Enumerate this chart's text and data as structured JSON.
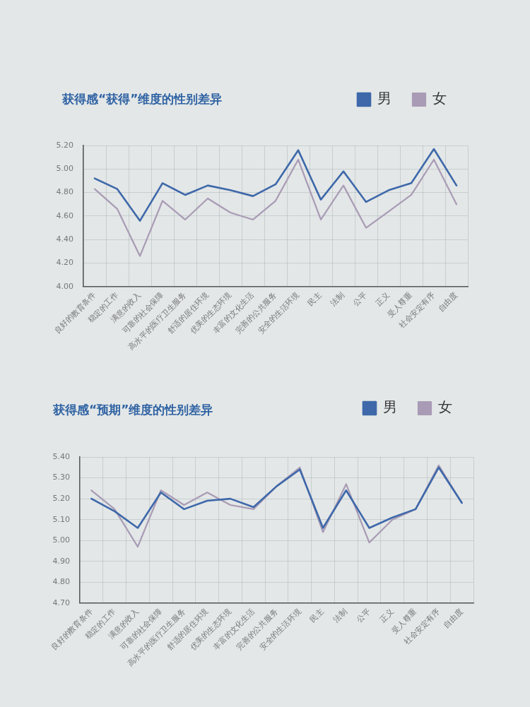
{
  "chart_data": [
    {
      "type": "line",
      "title": "获得感“获得”维度的性别差异",
      "categories": [
        "良好的教育条件",
        "稳定的工作",
        "满意的收入",
        "可靠的社会保障",
        "高水平的医疗卫生服务",
        "舒适的居住环境",
        "优美的生态环境",
        "丰富的文化生活",
        "完善的公共服务",
        "安全的生活环境",
        "民主",
        "法制",
        "公平",
        "正义",
        "受人尊重",
        "社会安定有序",
        "自由度"
      ],
      "series": [
        {
          "name": "男",
          "color": "#3e68aa",
          "values": [
            4.92,
            4.83,
            4.56,
            4.88,
            4.78,
            4.86,
            4.82,
            4.77,
            4.87,
            5.16,
            4.74,
            4.98,
            4.72,
            4.82,
            4.88,
            5.17,
            4.86
          ]
        },
        {
          "name": "女",
          "color": "#a99bb5",
          "values": [
            4.83,
            4.66,
            4.26,
            4.73,
            4.57,
            4.75,
            4.63,
            4.57,
            4.73,
            5.08,
            4.57,
            4.86,
            4.5,
            4.64,
            4.78,
            5.08,
            4.7
          ]
        }
      ],
      "ylim": [
        4.0,
        5.2
      ],
      "yticks": [
        {
          "value": 4.0,
          "label": "4.00"
        },
        {
          "value": 4.2,
          "label": "4.20"
        },
        {
          "value": 4.4,
          "label": "4.40"
        },
        {
          "value": 4.6,
          "label": "4.60"
        },
        {
          "value": 4.8,
          "label": "4.80"
        },
        {
          "value": 5.0,
          "label": "5.00"
        },
        {
          "value": 5.2,
          "label": "5.20"
        }
      ],
      "grid": true,
      "legend": "top right",
      "marker": "none",
      "line_style": "solid"
    },
    {
      "type": "line",
      "title": "获得感“预期”维度的性别差异",
      "categories": [
        "良好的教育条件",
        "稳定的工作",
        "满意的收入",
        "可靠的社会保障",
        "高水平的医疗卫生服务",
        "舒适的居住环境",
        "优美的生态环境",
        "丰富的文化生活",
        "完善的公共服务",
        "安全的生活环境",
        "民主",
        "法制",
        "公平",
        "正义",
        "受人尊重",
        "社会安定有序",
        "自由度"
      ],
      "series": [
        {
          "name": "男",
          "color": "#3e68aa",
          "values": [
            5.2,
            5.14,
            5.06,
            5.23,
            5.15,
            5.19,
            5.2,
            5.16,
            5.26,
            5.34,
            5.06,
            5.24,
            5.06,
            5.11,
            5.15,
            5.35,
            5.18
          ]
        },
        {
          "name": "女",
          "color": "#a99bb5",
          "values": [
            5.24,
            5.15,
            4.97,
            5.24,
            5.17,
            5.23,
            5.17,
            5.15,
            5.26,
            5.35,
            5.04,
            5.27,
            4.99,
            5.1,
            5.15,
            5.36,
            5.18
          ]
        }
      ],
      "ylim": [
        4.7,
        5.4
      ],
      "yticks": [
        {
          "value": 4.7,
          "label": "4.70"
        },
        {
          "value": 4.8,
          "label": "4.80"
        },
        {
          "value": 4.9,
          "label": "4.90"
        },
        {
          "value": 5.0,
          "label": "5.00"
        },
        {
          "value": 5.1,
          "label": "5.10"
        },
        {
          "value": 5.2,
          "label": "5.20"
        },
        {
          "value": 5.3,
          "label": "5.30"
        },
        {
          "value": 5.4,
          "label": "5.40"
        }
      ],
      "grid": true,
      "legend": "top right",
      "marker": "none",
      "line_style": "solid"
    }
  ]
}
